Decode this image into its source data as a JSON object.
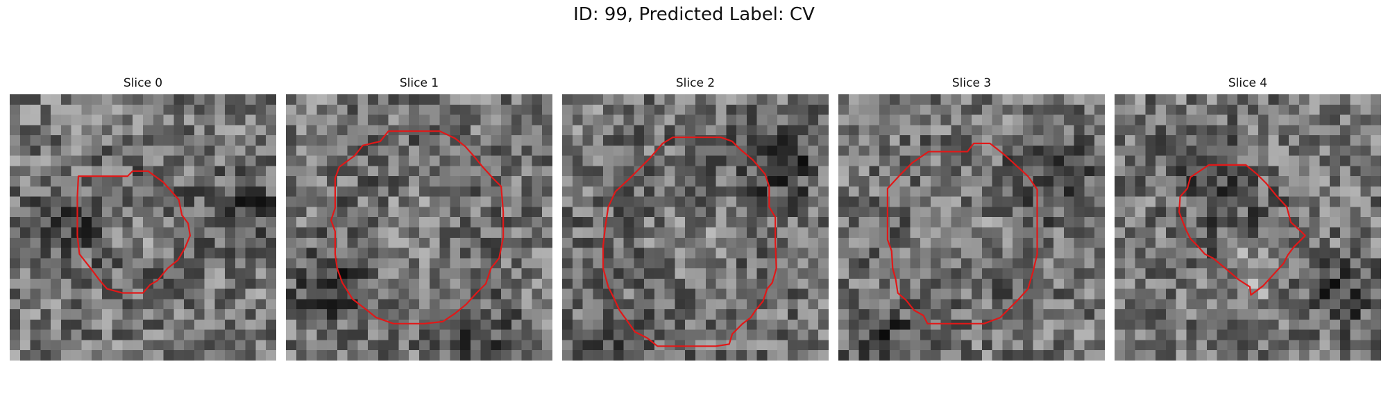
{
  "figure": {
    "title": "ID: 99, Predicted Label: CV",
    "colors": {
      "contour": "#e11818",
      "colormap": "gray"
    },
    "panels": [
      {
        "title": "Slice 0",
        "contour": [
          [
            10,
            8
          ],
          [
            11.5,
            8
          ],
          [
            12,
            7.5
          ],
          [
            13.5,
            7.5
          ],
          [
            15,
            8.6
          ],
          [
            16.5,
            10.3
          ],
          [
            16.8,
            11.8
          ],
          [
            17.4,
            12.6
          ],
          [
            17.6,
            13.8
          ],
          [
            17.1,
            15
          ],
          [
            16.4,
            16.2
          ],
          [
            15.4,
            17
          ],
          [
            14.4,
            18.2
          ],
          [
            13.7,
            18.6
          ],
          [
            13,
            19.4
          ],
          [
            11,
            19.4
          ],
          [
            9.5,
            19
          ],
          [
            8.8,
            18.2
          ],
          [
            7.9,
            17
          ],
          [
            6.8,
            15.6
          ],
          [
            6.6,
            13.8
          ],
          [
            6.6,
            10
          ],
          [
            6.7,
            8
          ]
        ],
        "blobs": [
          {
            "cx": 12.5,
            "cy": 13.5,
            "r": 5,
            "a": -40
          },
          {
            "cx": 12.5,
            "cy": 13.5,
            "r": 3,
            "a": 10
          },
          {
            "cx": 5,
            "cy": 12,
            "r": 2.5,
            "a": -60
          },
          {
            "cx": 23,
            "cy": 11,
            "r": 3,
            "a": 35
          }
        ]
      },
      {
        "title": "Slice 1",
        "contour": [
          [
            6.7,
            6
          ],
          [
            7.5,
            5
          ],
          [
            9.2,
            4.6
          ],
          [
            10,
            3.6
          ],
          [
            15,
            3.6
          ],
          [
            16.5,
            4.3
          ],
          [
            17.5,
            5.1
          ],
          [
            18.3,
            6
          ],
          [
            19.2,
            7.1
          ],
          [
            20.2,
            8.2
          ],
          [
            21,
            9
          ],
          [
            21.2,
            11.5
          ],
          [
            21.2,
            14
          ],
          [
            20.8,
            16
          ],
          [
            20,
            17
          ],
          [
            19.5,
            18.5
          ],
          [
            18.6,
            19.4
          ],
          [
            17.6,
            20.5
          ],
          [
            16.5,
            21.4
          ],
          [
            15.3,
            22.2
          ],
          [
            13.5,
            22.4
          ],
          [
            10.5,
            22.4
          ],
          [
            8.8,
            21.8
          ],
          [
            7.8,
            21
          ],
          [
            6.5,
            20
          ],
          [
            5.5,
            18.4
          ],
          [
            5,
            17
          ],
          [
            4.8,
            15.6
          ],
          [
            4.8,
            13.4
          ],
          [
            4.4,
            12.3
          ],
          [
            4.8,
            11.1
          ],
          [
            4.8,
            8.2
          ],
          [
            5.2,
            7.1
          ]
        ],
        "blobs": [
          {
            "cx": 12.5,
            "cy": 13.2,
            "r": 6.5,
            "a": 55
          },
          {
            "cx": 12.5,
            "cy": 13.2,
            "r": 4.5,
            "a": -5
          },
          {
            "cx": 4,
            "cy": 19,
            "r": 3,
            "a": -45
          },
          {
            "cx": 20,
            "cy": 26,
            "r": 4,
            "a": 25
          }
        ]
      },
      {
        "title": "Slice 2",
        "contour": [
          [
            9.8,
            4.8
          ],
          [
            10.8,
            4.2
          ],
          [
            15.5,
            4.2
          ],
          [
            16.6,
            4.6
          ],
          [
            17.4,
            5.4
          ],
          [
            18.6,
            6.4
          ],
          [
            19.8,
            7.8
          ],
          [
            20.2,
            9
          ],
          [
            20.2,
            11
          ],
          [
            20.8,
            12
          ],
          [
            20.8,
            14.5
          ],
          [
            20.9,
            17
          ],
          [
            20.5,
            18.4
          ],
          [
            20,
            19
          ],
          [
            19.6,
            20.2
          ],
          [
            18.8,
            21.2
          ],
          [
            18.4,
            21.8
          ],
          [
            17.6,
            22.4
          ],
          [
            16.6,
            23.4
          ],
          [
            16.3,
            24.4
          ],
          [
            15,
            24.6
          ],
          [
            9.3,
            24.6
          ],
          [
            8.3,
            23.8
          ],
          [
            7.1,
            23.2
          ],
          [
            6.4,
            22.2
          ],
          [
            5.6,
            21.1
          ],
          [
            5,
            19.8
          ],
          [
            4.5,
            18.8
          ],
          [
            4,
            17
          ],
          [
            4,
            14.8
          ],
          [
            4.2,
            13
          ],
          [
            4.5,
            11
          ],
          [
            5.2,
            9.5
          ],
          [
            6.5,
            8.3
          ],
          [
            7.8,
            7
          ],
          [
            8.6,
            6.2
          ]
        ],
        "blobs": [
          {
            "cx": 12.5,
            "cy": 14.8,
            "r": 7.5,
            "a": 50
          },
          {
            "cx": 12.5,
            "cy": 14.8,
            "r": 5,
            "a": -10
          },
          {
            "cx": 21.5,
            "cy": 6.5,
            "r": 3.5,
            "a": -50
          },
          {
            "cx": 3,
            "cy": 26,
            "r": 3,
            "a": 30
          }
        ]
      },
      {
        "title": "Slice 3",
        "contour": [
          [
            8.8,
            5.6
          ],
          [
            12.6,
            5.6
          ],
          [
            13.2,
            4.8
          ],
          [
            14.8,
            4.8
          ],
          [
            16.2,
            5.9
          ],
          [
            17.4,
            7
          ],
          [
            18.5,
            8
          ],
          [
            19.4,
            9.3
          ],
          [
            19.4,
            13.5
          ],
          [
            19.4,
            15.6
          ],
          [
            19,
            17.3
          ],
          [
            18.5,
            19
          ],
          [
            17.6,
            20
          ],
          [
            16.6,
            21
          ],
          [
            15.8,
            21.8
          ],
          [
            14.2,
            22.4
          ],
          [
            12,
            22.4
          ],
          [
            8.7,
            22.4
          ],
          [
            8.3,
            21.6
          ],
          [
            7.4,
            21.1
          ],
          [
            6.6,
            20.1
          ],
          [
            5.8,
            19.4
          ],
          [
            5.6,
            18.1
          ],
          [
            5.3,
            17
          ],
          [
            5.2,
            15.3
          ],
          [
            4.8,
            14.2
          ],
          [
            4.8,
            9.2
          ],
          [
            6,
            7.9
          ],
          [
            7.2,
            6.7
          ]
        ],
        "blobs": [
          {
            "cx": 12,
            "cy": 13.6,
            "r": 6.5,
            "a": -35
          },
          {
            "cx": 12,
            "cy": 13.6,
            "r": 4.5,
            "a": 20
          },
          {
            "cx": 21.5,
            "cy": 8,
            "r": 3,
            "a": 40
          },
          {
            "cx": 4,
            "cy": 24,
            "r": 3,
            "a": -30
          }
        ]
      },
      {
        "title": "Slice 4",
        "contour": [
          [
            7.4,
            8.1
          ],
          [
            8.6,
            7.3
          ],
          [
            9.2,
            6.9
          ],
          [
            12.8,
            6.9
          ],
          [
            13.9,
            7.8
          ],
          [
            14.8,
            8.7
          ],
          [
            15.7,
            9.8
          ],
          [
            16.8,
            11
          ],
          [
            17.2,
            12.5
          ],
          [
            18.2,
            13.4
          ],
          [
            18.6,
            13.8
          ],
          [
            17.5,
            14.9
          ],
          [
            16.9,
            15.7
          ],
          [
            16.5,
            16.5
          ],
          [
            15.5,
            17.6
          ],
          [
            14.5,
            18.7
          ],
          [
            13.3,
            19.6
          ],
          [
            13.2,
            18.8
          ],
          [
            12.1,
            18.1
          ],
          [
            11.4,
            17.5
          ],
          [
            10.7,
            16.9
          ],
          [
            9.6,
            16
          ],
          [
            8.8,
            15.6
          ],
          [
            8.1,
            14.8
          ],
          [
            7.4,
            14.1
          ],
          [
            7,
            13.3
          ],
          [
            6.6,
            12.3
          ],
          [
            6.3,
            11.5
          ],
          [
            6.4,
            10
          ],
          [
            7.1,
            9.2
          ]
        ],
        "blobs": [
          {
            "cx": 12.5,
            "cy": 13.5,
            "r": 5.5,
            "a": -20
          },
          {
            "cx": 13.5,
            "cy": 17,
            "r": 2.5,
            "a": 30
          },
          {
            "cx": 8.5,
            "cy": 6.5,
            "r": 3,
            "a": -45
          },
          {
            "cx": 22,
            "cy": 20,
            "r": 3,
            "a": 25
          }
        ]
      }
    ]
  }
}
